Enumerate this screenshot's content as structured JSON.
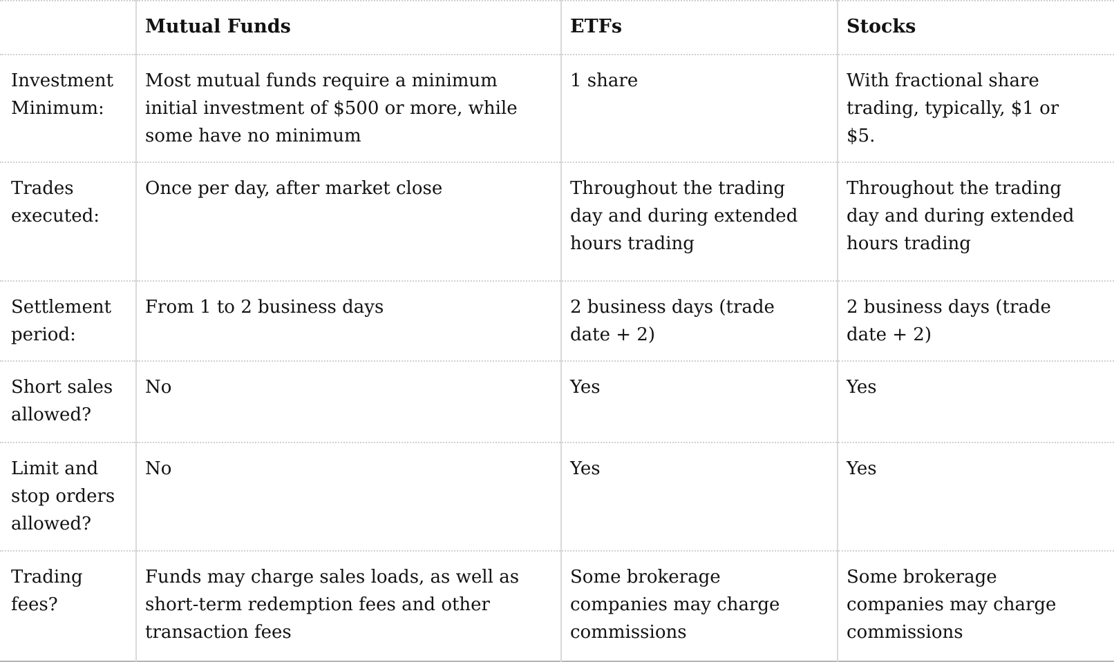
{
  "table": {
    "columns": [
      "",
      "Mutual Funds",
      "ETFs",
      "Stocks"
    ],
    "rows": [
      {
        "label": "Investment\nMinimum:",
        "cells": [
          "Most mutual funds require a minimum\ninitial investment of $500 or more, while\nsome have no minimum",
          "1 share",
          "With fractional share\ntrading, typically, $1 or\n$5."
        ]
      },
      {
        "label": "Trades\nexecuted:",
        "cells": [
          "Once per day, after market close",
          "Throughout the trading\nday and during extended\nhours trading",
          "Throughout the trading\nday and during extended\nhours trading"
        ]
      },
      {
        "label": "Settlement\nperiod:",
        "cells": [
          "From 1 to 2 business days",
          "2 business days (trade\ndate + 2)",
          "2 business days (trade\ndate + 2)"
        ]
      },
      {
        "label": "Short sales\nallowed?",
        "cells": [
          "No",
          "Yes",
          "Yes"
        ]
      },
      {
        "label": "Limit and\nstop orders\nallowed?",
        "cells": [
          "No",
          "Yes",
          "Yes"
        ]
      },
      {
        "label": "Trading\nfees?",
        "cells": [
          "Funds may charge sales loads, as well as\nshort-term redemption fees and other\ntransaction fees",
          "Some brokerage\ncompanies may charge\ncommissions",
          "Some brokerage\ncompanies may charge\ncommissions"
        ]
      }
    ],
    "colors": {
      "text": "#121212",
      "border_dotted": "#cfcfcf",
      "border_vertical": "#d9d9d9",
      "border_bottom": "#b3b3b3",
      "background": "#ffffff"
    }
  }
}
